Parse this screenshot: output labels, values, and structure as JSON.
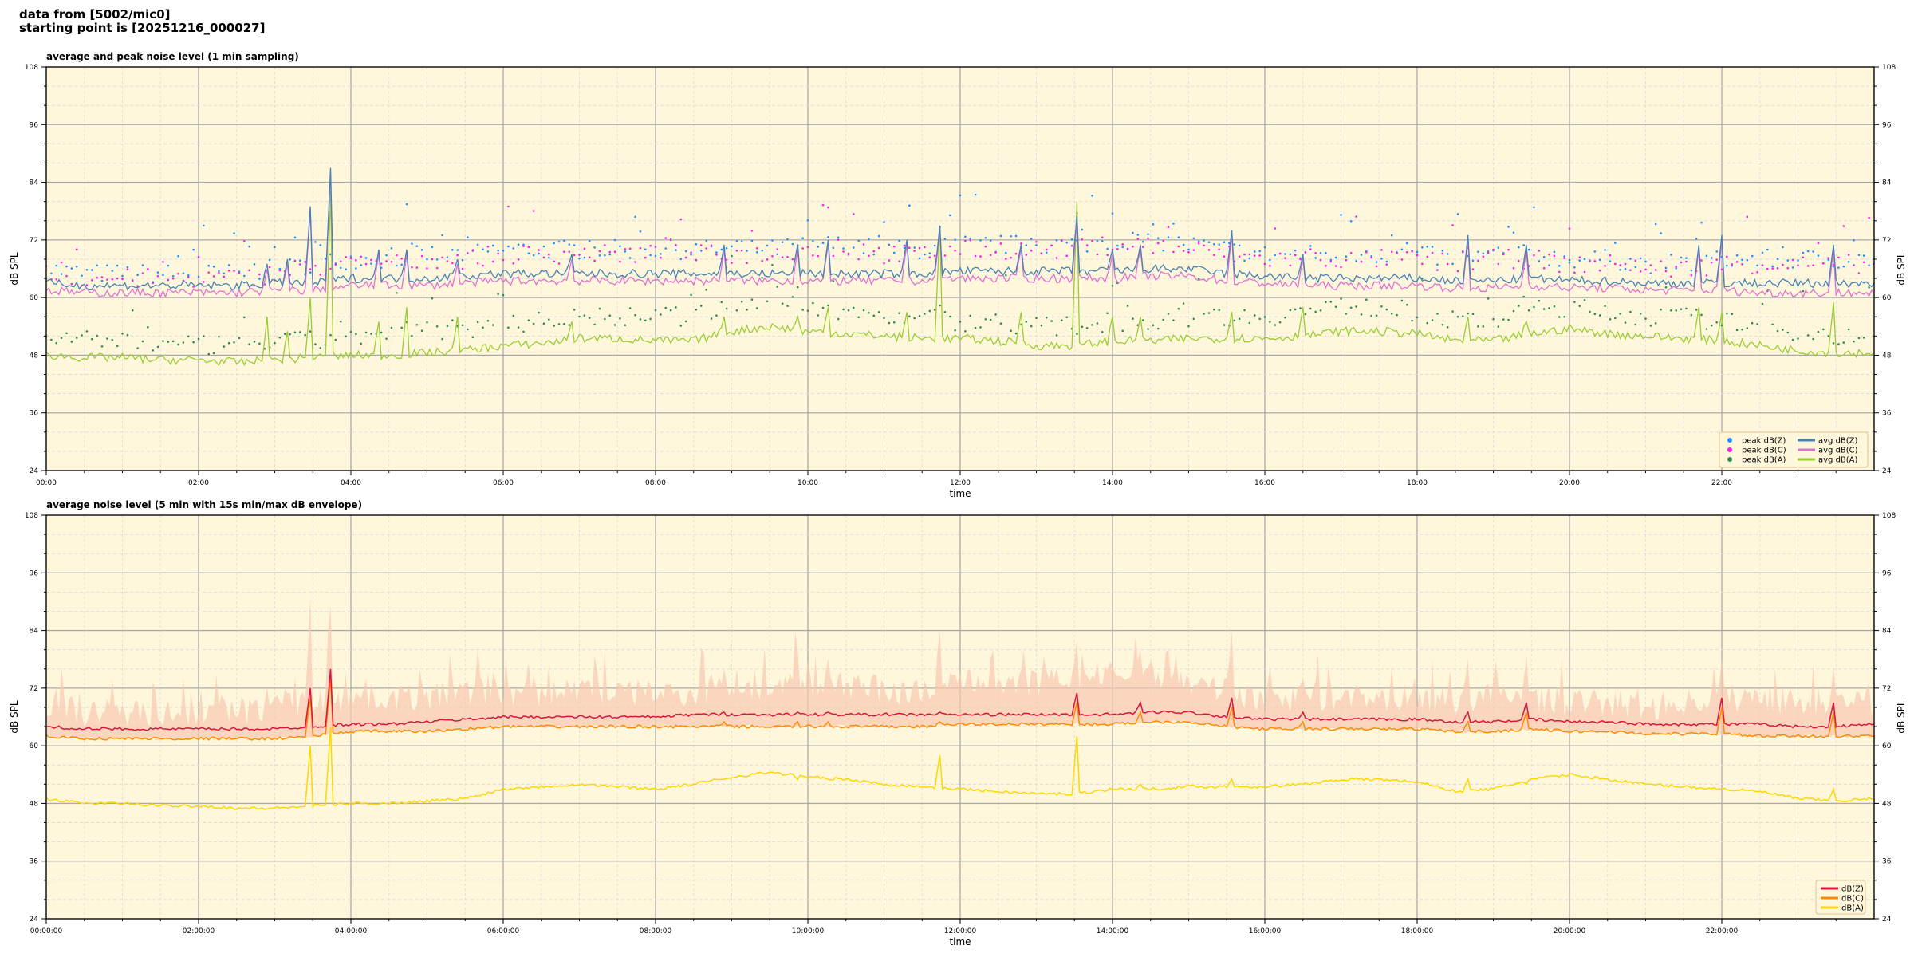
{
  "header": {
    "line1": "data from [5002/mic0]",
    "line2": "starting point is [20251216_000027]"
  },
  "colors": {
    "plot_bg": "#fff7dc",
    "peakZ": "#1e90ff",
    "peakC": "#ff1ee6",
    "peakA": "#2e8b57",
    "avgZ": "#4682b4",
    "avgC": "#e070d0",
    "avgA": "#9acd32",
    "dbZ": "#dc143c",
    "dbC": "#ff8c00",
    "dbA": "#ffd700",
    "envelope": "#f8c8b0"
  },
  "chart_data": [
    {
      "type": "line",
      "title": "average and peak noise level (1 min sampling)",
      "xlabel": "time",
      "ylabel": "dB SPL",
      "ylim": [
        24,
        108
      ],
      "xlim_hours": [
        0,
        24
      ],
      "yticks": [
        24,
        36,
        48,
        60,
        72,
        84,
        96,
        108
      ],
      "xticklabels": [
        "00:00",
        "02:00",
        "04:00",
        "06:00",
        "08:00",
        "10:00",
        "12:00",
        "14:00",
        "16:00",
        "18:00",
        "20:00",
        "22:00"
      ],
      "grid": true,
      "legend": "bottom-right",
      "x_hours_step": 0.5,
      "series": [
        {
          "name": "avg dB(Z)",
          "color_key": "avgZ",
          "values": [
            63,
            62.5,
            62.5,
            62.5,
            62.5,
            62.5,
            63,
            63,
            64,
            64,
            64,
            64.5,
            65,
            65,
            65,
            65,
            65,
            65,
            65,
            65,
            65,
            65,
            65,
            65,
            65.5,
            65.5,
            65.5,
            65.5,
            65.5,
            66,
            66,
            65,
            64.5,
            64,
            64,
            64,
            64,
            63.5,
            63.5,
            64,
            63.5,
            63.5,
            63,
            63,
            63,
            63,
            63,
            63,
            63
          ]
        },
        {
          "name": "avg dB(C)",
          "color_key": "avgC",
          "values": [
            61.5,
            61,
            61,
            61,
            61,
            61,
            61.5,
            61.5,
            62.5,
            62.5,
            62.5,
            63,
            63.5,
            63.5,
            63.5,
            63.5,
            63.5,
            63.5,
            63.5,
            63.5,
            63.5,
            63.5,
            63.5,
            63.5,
            64,
            64,
            64,
            64,
            64,
            64.5,
            64.5,
            63.5,
            63,
            62.5,
            62.5,
            62.5,
            62.5,
            62,
            62,
            62.5,
            62,
            62,
            61.5,
            61.5,
            61.5,
            61,
            61,
            61,
            61
          ]
        },
        {
          "name": "avg dB(A)",
          "color_key": "avgA",
          "values": [
            48,
            47.5,
            47.5,
            47,
            47,
            46.5,
            47,
            47.5,
            48,
            48,
            48.5,
            49,
            50,
            50.5,
            51.5,
            51.5,
            51,
            51,
            53,
            54,
            53,
            52.5,
            52,
            51.5,
            51.5,
            51,
            50,
            50,
            51,
            51,
            51.5,
            51.5,
            51.5,
            52,
            53,
            53,
            52.5,
            51,
            51,
            52.5,
            53.5,
            52.5,
            52,
            51.5,
            51,
            50,
            49,
            48.5,
            48.5
          ]
        },
        {
          "name": "peak dB(Z)",
          "color_key": "peakZ",
          "values": [
            66,
            65,
            65,
            65,
            65,
            65,
            66,
            67,
            68,
            68,
            69,
            69,
            70,
            70,
            70,
            70,
            70,
            70,
            70,
            70,
            71,
            71,
            70,
            70,
            71,
            71,
            71,
            71,
            72,
            72,
            71,
            70,
            69,
            69,
            69,
            69,
            69,
            68,
            69,
            69,
            68,
            68,
            67,
            67,
            68,
            68,
            68,
            68,
            68
          ]
        },
        {
          "name": "peak dB(C)",
          "color_key": "peakC",
          "values": [
            65,
            64,
            64,
            64,
            64,
            64,
            65,
            66,
            67,
            67,
            68,
            68,
            69,
            69,
            69,
            69,
            69,
            69,
            69,
            69,
            70,
            70,
            69,
            69,
            70,
            70,
            70,
            70,
            71,
            71,
            70,
            69,
            68,
            68,
            68,
            68,
            68,
            67,
            68,
            68,
            67,
            67,
            66,
            66,
            67,
            67,
            67,
            67,
            67
          ]
        },
        {
          "name": "peak dB(A)",
          "color_key": "peakA",
          "values": [
            52,
            51,
            51,
            50,
            50,
            50,
            51,
            51,
            52,
            52,
            53,
            53,
            54,
            55,
            56,
            56,
            56,
            56,
            58,
            59,
            58,
            57,
            56,
            56,
            55,
            55,
            54,
            54,
            55,
            55,
            56,
            56,
            56,
            57,
            58,
            58,
            57,
            55,
            55,
            57,
            58,
            57,
            56,
            56,
            55,
            54,
            53,
            52,
            52
          ]
        }
      ],
      "spikes_hours": [
        2.9,
        3.15,
        3.45,
        3.72,
        4.35,
        4.72,
        5.4,
        6.9,
        8.9,
        9.88,
        10.25,
        11.3,
        11.72,
        12.8,
        13.52,
        14.0,
        14.35,
        15.55,
        16.5,
        18.67,
        19.42,
        21.7,
        22.0,
        23.45
      ],
      "spikes_avgZ": [
        67,
        68,
        79,
        87,
        70,
        70,
        68,
        69,
        71,
        71,
        72,
        72,
        75,
        71,
        77,
        70,
        71,
        74,
        69,
        73,
        71,
        71,
        73,
        71
      ],
      "spikes_avgA": [
        56,
        53,
        60,
        82,
        55,
        58,
        56,
        55,
        56,
        56,
        58,
        57,
        75,
        57,
        80,
        56,
        56,
        57,
        58,
        56,
        55,
        58,
        57,
        59
      ]
    },
    {
      "type": "line",
      "title": "average noise level (5 min with 15s min/max dB envelope)",
      "xlabel": "time",
      "ylabel": "dB SPL",
      "ylim": [
        24,
        108
      ],
      "xlim_hours": [
        0,
        24
      ],
      "yticks": [
        24,
        36,
        48,
        60,
        72,
        84,
        96,
        108
      ],
      "xticklabels": [
        "00:00:00",
        "02:00:00",
        "04:00:00",
        "06:00:00",
        "08:00:00",
        "10:00:00",
        "12:00:00",
        "14:00:00",
        "16:00:00",
        "18:00:00",
        "20:00:00",
        "22:00:00"
      ],
      "grid": true,
      "legend": "bottom-right",
      "x_hours_step": 0.5,
      "series": [
        {
          "name": "dB(Z)",
          "color_key": "dbZ",
          "values": [
            64,
            63.5,
            63.5,
            63.5,
            63.5,
            63.5,
            63.5,
            64,
            64.5,
            64.5,
            65,
            65.5,
            66,
            66,
            66,
            66,
            66,
            66.5,
            66.5,
            66.5,
            66.5,
            66.5,
            66.5,
            66.5,
            66.5,
            66.5,
            66.5,
            66.5,
            66.5,
            67,
            67,
            66,
            65.5,
            65.5,
            65.5,
            65.5,
            65.5,
            65,
            65,
            65.5,
            65,
            65,
            64.5,
            64.5,
            64.5,
            64.5,
            64,
            64,
            64.5
          ]
        },
        {
          "name": "dB(C)",
          "color_key": "dbC",
          "values": [
            62,
            61.5,
            61.5,
            61.5,
            61.5,
            61.5,
            61.5,
            62,
            63,
            63,
            63,
            63.5,
            64,
            64,
            64,
            64,
            64,
            64,
            64,
            64,
            64,
            64,
            64,
            64,
            64.5,
            64.5,
            64.5,
            64.5,
            64.5,
            65,
            65,
            64,
            63.5,
            63.5,
            63.5,
            63.5,
            63.5,
            63,
            63,
            63.5,
            63,
            63,
            62.5,
            62.5,
            62.5,
            62,
            62,
            62,
            62
          ]
        },
        {
          "name": "dB(A)",
          "color_key": "dbA",
          "values": [
            49,
            48,
            48,
            47.5,
            47.5,
            47,
            47,
            47.5,
            48,
            48,
            48.5,
            49,
            51,
            51.5,
            52,
            51.5,
            51,
            52,
            53.5,
            54.5,
            53.5,
            53,
            52,
            51.5,
            51,
            50.5,
            50,
            50,
            51,
            51,
            51.5,
            51.5,
            51.5,
            52,
            53,
            53,
            52.5,
            50.5,
            51,
            53,
            54,
            53,
            52,
            51.5,
            51,
            50.5,
            49,
            48.5,
            49
          ]
        },
        {
          "name": "envelope max",
          "color_key": "envelope",
          "values": [
            69,
            67,
            67,
            67,
            67,
            67,
            68,
            69,
            70,
            70,
            70,
            71,
            71,
            71,
            72,
            71,
            71,
            71,
            72,
            72,
            72,
            73,
            71,
            71,
            73,
            73,
            73,
            74,
            75,
            75,
            73,
            71,
            70,
            70,
            70,
            70,
            70,
            69,
            70,
            70,
            69,
            69,
            68,
            69,
            70,
            70,
            69,
            69,
            69
          ]
        }
      ],
      "spikes_hours": [
        3.45,
        3.72,
        8.9,
        9.88,
        10.25,
        11.72,
        13.52,
        14.35,
        15.55,
        16.5,
        18.67,
        19.42,
        22.0,
        23.45
      ],
      "spikes_dbZ": [
        72,
        76,
        67,
        67,
        67,
        67,
        71,
        69,
        70,
        67,
        67,
        69,
        70,
        69
      ],
      "spikes_dbA": [
        60,
        64,
        53,
        53,
        53,
        58,
        62,
        52,
        53,
        52,
        53,
        52,
        51,
        51
      ],
      "spikes_envelope": [
        90,
        89,
        76,
        80,
        78,
        84,
        82,
        80,
        84,
        74,
        78,
        79,
        78,
        76
      ]
    }
  ],
  "legends": [
    {
      "items": [
        {
          "label": "peak dB(Z)",
          "key": "peakZ",
          "kind": "dot"
        },
        {
          "label": "avg dB(Z)",
          "key": "avgZ",
          "kind": "line"
        },
        {
          "label": "peak dB(C)",
          "key": "peakC",
          "kind": "dot"
        },
        {
          "label": "avg dB(C)",
          "key": "avgC",
          "kind": "line"
        },
        {
          "label": "peak dB(A)",
          "key": "peakA",
          "kind": "dot"
        },
        {
          "label": "avg dB(A)",
          "key": "avgA",
          "kind": "line"
        }
      ]
    },
    {
      "items": [
        {
          "label": "dB(Z)",
          "key": "dbZ",
          "kind": "line"
        },
        {
          "label": "dB(C)",
          "key": "dbC",
          "kind": "line"
        },
        {
          "label": "dB(A)",
          "key": "dbA",
          "kind": "line"
        }
      ]
    }
  ]
}
